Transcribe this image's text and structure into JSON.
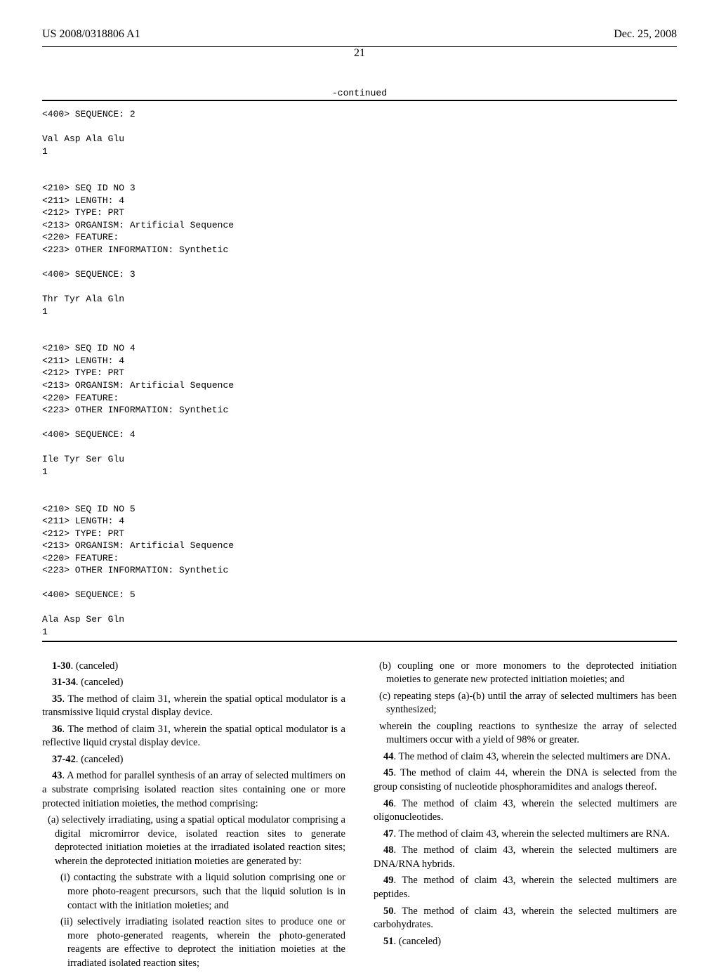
{
  "header": {
    "pub_number": "US 2008/0318806 A1",
    "pub_date": "Dec. 25, 2008",
    "page_number": "21"
  },
  "continued_label": "-continued",
  "sequence_text": "<400> SEQUENCE: 2\n\nVal Asp Ala Glu\n1\n\n\n<210> SEQ ID NO 3\n<211> LENGTH: 4\n<212> TYPE: PRT\n<213> ORGANISM: Artificial Sequence\n<220> FEATURE:\n<223> OTHER INFORMATION: Synthetic\n\n<400> SEQUENCE: 3\n\nThr Tyr Ala Gln\n1\n\n\n<210> SEQ ID NO 4\n<211> LENGTH: 4\n<212> TYPE: PRT\n<213> ORGANISM: Artificial Sequence\n<220> FEATURE:\n<223> OTHER INFORMATION: Synthetic\n\n<400> SEQUENCE: 4\n\nIle Tyr Ser Glu\n1\n\n\n<210> SEQ ID NO 5\n<211> LENGTH: 4\n<212> TYPE: PRT\n<213> ORGANISM: Artificial Sequence\n<220> FEATURE:\n<223> OTHER INFORMATION: Synthetic\n\n<400> SEQUENCE: 5\n\nAla Asp Ser Gln\n1",
  "claims": {
    "c1_30": {
      "num": "1-30",
      "text": ". (canceled)"
    },
    "c31_34": {
      "num": "31-34",
      "text": ". (canceled)"
    },
    "c35": {
      "num": "35",
      "text": ". The method of claim 31, wherein the spatial optical modulator is a transmissive liquid crystal display device."
    },
    "c36": {
      "num": "36",
      "text": ". The method of claim 31, wherein the spatial optical modulator is a reflective liquid crystal display device."
    },
    "c37_42": {
      "num": "37-42",
      "text": ". (canceled)"
    },
    "c43": {
      "num": "43",
      "intro": ". A method for parallel synthesis of an array of selected multimers on a substrate comprising isolated reaction sites containing one or more protected initiation moieties, the method comprising:",
      "a": "(a) selectively irradiating, using a spatial optical modulator comprising a digital micromirror device, isolated reaction sites to generate deprotected initiation moieties at the irradiated isolated reaction sites; wherein the deprotected initiation moieties are generated by:",
      "a_i": "(i) contacting the substrate with a liquid solution comprising one or more photo-reagent precursors, such that the liquid solution is in contact with the initiation moieties; and",
      "a_ii": "(ii) selectively irradiating isolated reaction sites to produce one or more photo-generated reagents, wherein the photo-generated reagents are effective to deprotect the initiation moieties at the irradiated isolated reaction sites;",
      "b": "(b) coupling one or more monomers to the deprotected initiation moieties to generate new protected initiation moieties; and",
      "c": "(c) repeating steps (a)-(b) until the array of selected multimers has been synthesized;",
      "wherein": "wherein the coupling reactions to synthesize the array of selected multimers occur with a yield of 98% or greater."
    },
    "c44": {
      "num": "44",
      "text": ". The method of claim 43, wherein the selected multimers are DNA."
    },
    "c45": {
      "num": "45",
      "text": ". The method of claim 44, wherein the DNA is selected from the group consisting of nucleotide phosphoramidites and analogs thereof."
    },
    "c46": {
      "num": "46",
      "text": ". The method of claim 43, wherein the selected multimers are oligonucleotides."
    },
    "c47": {
      "num": "47",
      "text": ". The method of claim 43, wherein the selected multimers are RNA."
    },
    "c48": {
      "num": "48",
      "text": ". The method of claim 43, wherein the selected multimers are DNA/RNA hybrids."
    },
    "c49": {
      "num": "49",
      "text": ". The method of claim 43, wherein the selected multimers are peptides."
    },
    "c50": {
      "num": "50",
      "text": ". The method of claim 43, wherein the selected multimers are carbohydrates."
    },
    "c51": {
      "num": "51",
      "text": ". (canceled)"
    }
  }
}
